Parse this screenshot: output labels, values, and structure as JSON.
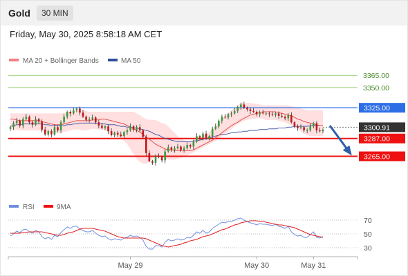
{
  "header": {
    "symbol": "Gold",
    "interval": "30 MIN"
  },
  "datetime": "Friday, May 30, 2025 8:58:18 AM CET",
  "colors": {
    "ma20": "#e05050",
    "band_fill": "#ffd4d4",
    "ma50": "#4a5fa8",
    "support": "#ee1111",
    "resistance_blue": "#2d6ee6",
    "target_green": "#7cc04c",
    "candle_up": "#3a9a3a",
    "candle_down": "#c01818",
    "rsi": "#6e8ee0",
    "rsi_ma": "#e02020",
    "arrow": "#2e5fa8"
  },
  "chart_data": [
    {
      "type": "line",
      "title": "",
      "legend": [
        {
          "name": "MA 20 + Bollinger Bands",
          "color": "#f08080"
        },
        {
          "name": "MA 50",
          "color": "#2e4f9a"
        }
      ],
      "ylim": [
        3216,
        3378
      ],
      "current_price": {
        "value": 3300.91,
        "label": "3300.91"
      },
      "levels": [
        {
          "value": 3365.0,
          "label": "3365.00",
          "color": "#7cc04c",
          "style": "thin"
        },
        {
          "value": 3350.0,
          "label": "3350.00",
          "color": "#7cc04c",
          "style": "thin"
        },
        {
          "value": 3325.0,
          "label": "3325.00",
          "color": "#2d6ee6",
          "style": "medium"
        },
        {
          "value": 3287.0,
          "label": "3287.00",
          "color": "#ee1111",
          "style": "thick"
        },
        {
          "value": 3265.0,
          "label": "3265.00",
          "color": "#ee1111",
          "style": "thick"
        }
      ],
      "series": [
        {
          "name": "Close",
          "values": [
            3301,
            3306,
            3309,
            3303,
            3311,
            3314,
            3307,
            3304,
            3311,
            3308,
            3298,
            3292,
            3296,
            3292,
            3301,
            3297,
            3307,
            3314,
            3320,
            3318,
            3322,
            3324,
            3319,
            3314,
            3310,
            3311,
            3313,
            3307,
            3303,
            3300,
            3302,
            3296,
            3291,
            3294,
            3292,
            3290,
            3295,
            3297,
            3302,
            3298,
            3301,
            3297,
            3289,
            3269,
            3259,
            3257,
            3265,
            3264,
            3260,
            3271,
            3276,
            3273,
            3275,
            3277,
            3273,
            3275,
            3279,
            3277,
            3283,
            3290,
            3288,
            3293,
            3287,
            3290,
            3299,
            3302,
            3309,
            3314,
            3313,
            3317,
            3318,
            3321,
            3326,
            3329,
            3325,
            3323,
            3321,
            3320,
            3317,
            3319,
            3318,
            3318,
            3317,
            3316,
            3318,
            3315,
            3314,
            3312,
            3316,
            3307,
            3302,
            3300,
            3301,
            3297,
            3297,
            3302,
            3306,
            3297,
            3296,
            3298
          ]
        },
        {
          "name": "MA 20",
          "values": [
            3311,
            3311,
            3310,
            3309,
            3309,
            3309,
            3309,
            3309,
            3309,
            3309,
            3308,
            3307,
            3306,
            3305,
            3304,
            3304,
            3304,
            3305,
            3306,
            3307,
            3308,
            3309,
            3309,
            3309,
            3309,
            3309,
            3310,
            3310,
            3310,
            3311,
            3311,
            3310,
            3309,
            3308,
            3307,
            3306,
            3305,
            3303,
            3301,
            3299,
            3297,
            3295,
            3292,
            3289,
            3286,
            3283,
            3280,
            3278,
            3276,
            3274,
            3273,
            3273,
            3272,
            3272,
            3272,
            3272,
            3272,
            3272,
            3273,
            3275,
            3277,
            3279,
            3281,
            3283,
            3285,
            3288,
            3291,
            3294,
            3297,
            3300,
            3303,
            3305,
            3307,
            3310,
            3312,
            3314,
            3316,
            3317,
            3318,
            3319,
            3320,
            3320,
            3320,
            3320,
            3320,
            3319,
            3318,
            3317,
            3316,
            3315,
            3313,
            3311,
            3310,
            3308,
            3307,
            3306,
            3305,
            3304,
            3303,
            3303
          ]
        },
        {
          "name": "Upper Band",
          "values": [
            3318,
            3318,
            3318,
            3318,
            3318,
            3318,
            3318,
            3318,
            3318,
            3318,
            3318,
            3318,
            3318,
            3318,
            3318,
            3318,
            3318,
            3319,
            3319,
            3320,
            3321,
            3322,
            3322,
            3322,
            3321,
            3320,
            3320,
            3320,
            3320,
            3320,
            3320,
            3320,
            3320,
            3320,
            3320,
            3320,
            3320,
            3320,
            3320,
            3320,
            3318,
            3316,
            3313,
            3311,
            3310,
            3310,
            3310,
            3308,
            3306,
            3305,
            3302,
            3298,
            3294,
            3290,
            3287,
            3285,
            3284,
            3284,
            3285,
            3286,
            3288,
            3290,
            3292,
            3295,
            3298,
            3302,
            3307,
            3312,
            3315,
            3318,
            3322,
            3325,
            3328,
            3331,
            3331,
            3331,
            3331,
            3330,
            3330,
            3329,
            3328,
            3328,
            3328,
            3328,
            3328,
            3328,
            3328,
            3328,
            3328,
            3327,
            3326,
            3325,
            3324,
            3323,
            3322,
            3322,
            3322,
            3322,
            3322,
            3322
          ]
        },
        {
          "name": "Lower Band",
          "values": [
            3298,
            3298,
            3298,
            3297,
            3297,
            3297,
            3297,
            3297,
            3297,
            3297,
            3296,
            3296,
            3295,
            3295,
            3294,
            3294,
            3294,
            3295,
            3296,
            3297,
            3298,
            3298,
            3298,
            3297,
            3297,
            3298,
            3299,
            3299,
            3298,
            3298,
            3297,
            3295,
            3293,
            3291,
            3289,
            3287,
            3284,
            3280,
            3274,
            3268,
            3262,
            3258,
            3256,
            3256,
            3258,
            3262,
            3265,
            3266,
            3265,
            3262,
            3261,
            3261,
            3261,
            3262,
            3263,
            3264,
            3266,
            3268,
            3270,
            3272,
            3274,
            3276,
            3278,
            3280,
            3282,
            3284,
            3287,
            3290,
            3293,
            3296,
            3299,
            3302,
            3305,
            3307,
            3309,
            3310,
            3311,
            3311,
            3312,
            3312,
            3311,
            3310,
            3310,
            3310,
            3310,
            3309,
            3308,
            3307,
            3305,
            3303,
            3301,
            3299,
            3296,
            3293,
            3291,
            3290,
            3290,
            3290,
            3290,
            3290
          ]
        },
        {
          "name": "MA 50",
          "values": [
            3302,
            3303,
            3304,
            3304,
            3305,
            3305,
            3305,
            3305,
            3305,
            3305,
            3305,
            3304,
            3304,
            3303,
            3303,
            3303,
            3303,
            3303,
            3304,
            3304,
            3305,
            3305,
            3306,
            3306,
            3306,
            3306,
            3306,
            3306,
            3305,
            3305,
            3305,
            3304,
            3304,
            3304,
            3303,
            3302,
            3302,
            3301,
            3301,
            3300,
            3300,
            3299,
            3298,
            3297,
            3296,
            3294,
            3292,
            3291,
            3289,
            3287,
            3286,
            3285,
            3284,
            3283,
            3283,
            3283,
            3283,
            3283,
            3284,
            3284,
            3285,
            3286,
            3287,
            3288,
            3289,
            3290,
            3291,
            3292,
            3292,
            3293,
            3294,
            3294,
            3295,
            3295,
            3296,
            3296,
            3297,
            3297,
            3297,
            3298,
            3298,
            3298,
            3299,
            3299,
            3299,
            3300,
            3300,
            3300,
            3301,
            3301,
            3302,
            3302,
            3302,
            3302,
            3302,
            3303,
            3303,
            3303,
            3303,
            3303
          ]
        }
      ]
    },
    {
      "type": "line",
      "legend": [
        {
          "name": "RSI",
          "color": "#6e8ee0"
        },
        {
          "name": "9MA",
          "color": "#ee1111"
        }
      ],
      "ylim": [
        20,
        80
      ],
      "yticks": [
        70,
        50,
        30
      ],
      "series": [
        {
          "name": "RSI",
          "values": [
            47,
            50,
            54,
            52,
            56,
            57,
            53,
            51,
            55,
            53,
            46,
            43,
            45,
            42,
            48,
            46,
            52,
            56,
            60,
            58,
            61,
            61,
            57,
            55,
            53,
            53,
            55,
            51,
            48,
            46,
            47,
            43,
            41,
            43,
            42,
            41,
            44,
            45,
            48,
            46,
            47,
            45,
            41,
            32,
            28,
            28,
            33,
            33,
            31,
            38,
            42,
            40,
            41,
            43,
            41,
            42,
            45,
            44,
            48,
            53,
            51,
            55,
            51,
            53,
            58,
            61,
            64,
            67,
            66,
            68,
            68,
            70,
            72,
            73,
            70,
            68,
            66,
            65,
            63,
            65,
            64,
            64,
            63,
            62,
            64,
            61,
            60,
            58,
            61,
            53,
            49,
            47,
            48,
            45,
            45,
            49,
            53,
            45,
            44,
            46
          ]
        },
        {
          "name": "9MA",
          "values": [
            51,
            51,
            51,
            51,
            52,
            52,
            53,
            53,
            53,
            53,
            53,
            52,
            51,
            50,
            49,
            48,
            48,
            49,
            51,
            52,
            53,
            55,
            57,
            58,
            58,
            58,
            58,
            57,
            56,
            55,
            54,
            52,
            50,
            48,
            46,
            45,
            44,
            44,
            44,
            44,
            44,
            44,
            44,
            43,
            41,
            39,
            37,
            35,
            33,
            32,
            31,
            32,
            33,
            34,
            35,
            37,
            38,
            40,
            41,
            42,
            44,
            46,
            47,
            48,
            50,
            52,
            54,
            56,
            57,
            59,
            61,
            63,
            64,
            66,
            67,
            68,
            69,
            69,
            69,
            68,
            68,
            67,
            66,
            65,
            64,
            63,
            63,
            62,
            61,
            60,
            59,
            57,
            55,
            53,
            51,
            49,
            48,
            47,
            46,
            45
          ]
        }
      ]
    }
  ],
  "xaxis": {
    "ticks": [
      {
        "index": 38,
        "label": "May 29"
      },
      {
        "index": 78,
        "label": "May 30"
      },
      {
        "index": 96,
        "label": "May 31"
      }
    ]
  }
}
